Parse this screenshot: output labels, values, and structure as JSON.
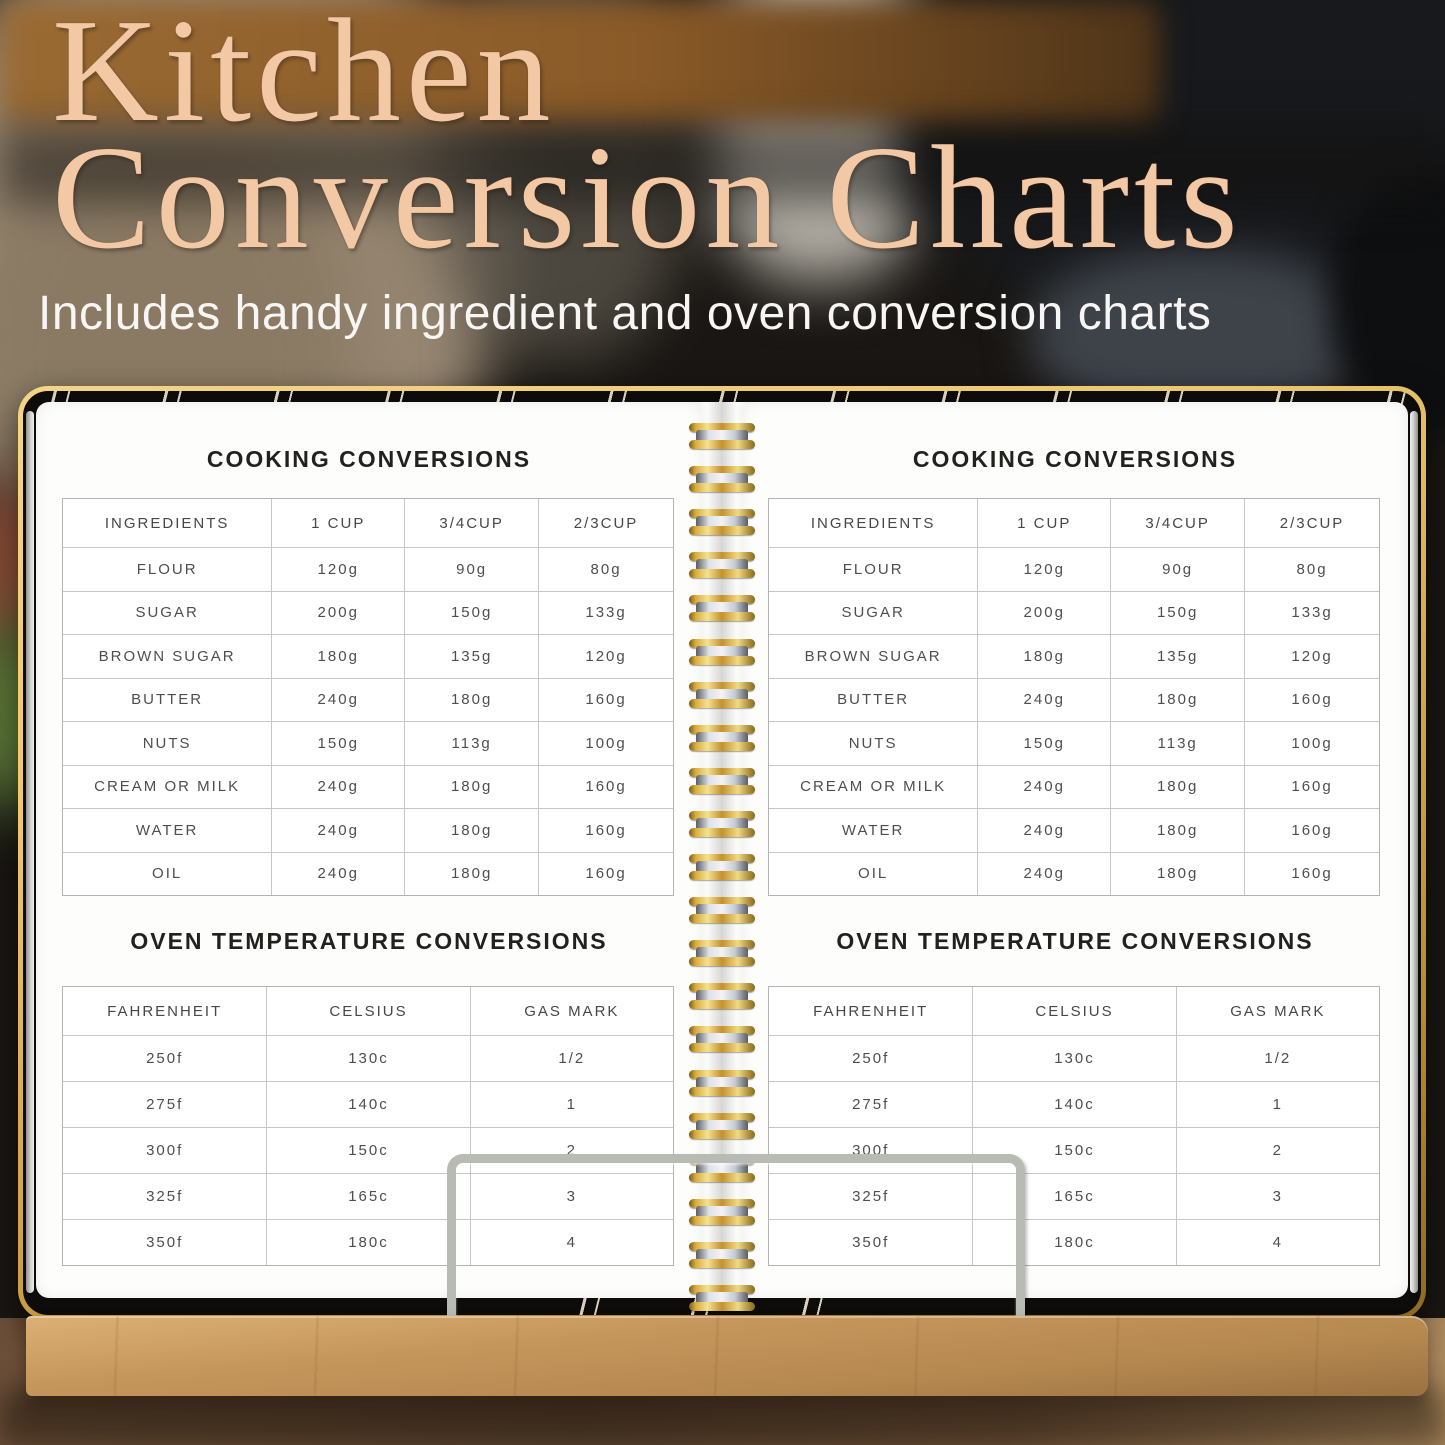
{
  "hero": {
    "title_lines": [
      "Kitchen",
      "Conversion Charts"
    ],
    "subtitle": "Includes handy ingredient and oven conversion charts"
  },
  "tables": {
    "cooking": {
      "title": "COOKING CONVERSIONS",
      "headers": [
        "INGREDIENTS",
        "1 CUP",
        "3/4CUP",
        "2/3CUP"
      ],
      "rows": [
        [
          "FLOUR",
          "120g",
          "90g",
          "80g"
        ],
        [
          "SUGAR",
          "200g",
          "150g",
          "133g"
        ],
        [
          "BROWN SUGAR",
          "180g",
          "135g",
          "120g"
        ],
        [
          "BUTTER",
          "240g",
          "180g",
          "160g"
        ],
        [
          "NUTS",
          "150g",
          "113g",
          "100g"
        ],
        [
          "CREAM OR MILK",
          "240g",
          "180g",
          "160g"
        ],
        [
          "WATER",
          "240g",
          "180g",
          "160g"
        ],
        [
          "OIL",
          "240g",
          "180g",
          "160g"
        ]
      ]
    },
    "oven": {
      "title": "OVEN TEMPERATURE CONVERSIONS",
      "headers": [
        "FAHRENHEIT",
        "CELSIUS",
        "GAS MARK"
      ],
      "rows": [
        [
          "250f",
          "130c",
          "1/2"
        ],
        [
          "275f",
          "140c",
          "1"
        ],
        [
          "300f",
          "150c",
          "2"
        ],
        [
          "325f",
          "165c",
          "3"
        ],
        [
          "350f",
          "180c",
          "4"
        ]
      ]
    }
  },
  "chart_data": [
    {
      "type": "table",
      "title": "COOKING CONVERSIONS",
      "columns": [
        "INGREDIENTS",
        "1 CUP",
        "3/4CUP",
        "2/3CUP"
      ],
      "rows": [
        [
          "FLOUR",
          "120g",
          "90g",
          "80g"
        ],
        [
          "SUGAR",
          "200g",
          "150g",
          "133g"
        ],
        [
          "BROWN SUGAR",
          "180g",
          "135g",
          "120g"
        ],
        [
          "BUTTER",
          "240g",
          "180g",
          "160g"
        ],
        [
          "NUTS",
          "150g",
          "113g",
          "100g"
        ],
        [
          "CREAM OR MILK",
          "240g",
          "180g",
          "160g"
        ],
        [
          "WATER",
          "240g",
          "180g",
          "160g"
        ],
        [
          "OIL",
          "240g",
          "180g",
          "160g"
        ]
      ],
      "shown_on_both_facing_pages": true
    },
    {
      "type": "table",
      "title": "OVEN TEMPERATURE CONVERSIONS",
      "columns": [
        "FAHRENHEIT",
        "CELSIUS",
        "GAS MARK"
      ],
      "rows": [
        [
          "250f",
          "130c",
          "1/2"
        ],
        [
          "275f",
          "140c",
          "1"
        ],
        [
          "300f",
          "150c",
          "2"
        ],
        [
          "325f",
          "165c",
          "3"
        ],
        [
          "350f",
          "180c",
          "4"
        ]
      ],
      "shown_on_both_facing_pages": true
    }
  ],
  "colors": {
    "title": "#f3c8a5",
    "subtitle": "#f7f6f4",
    "cover": "#0d0c0a",
    "gold": "#ecc76f",
    "goldDeep": "#bd8f33",
    "page": "#fdfdfc",
    "spiralGold": "#c3922c",
    "spiralGoldLight": "#f6e190",
    "wood": "#c5965c",
    "woodDark": "#9a7142",
    "wire": "#b8bbb3",
    "tableBorder": "#b3b3b3",
    "tableLine": "#c6c6c6",
    "tableText": "#4e4e4e",
    "headingText": "#23211e",
    "patternCream": "#ece0cb"
  }
}
